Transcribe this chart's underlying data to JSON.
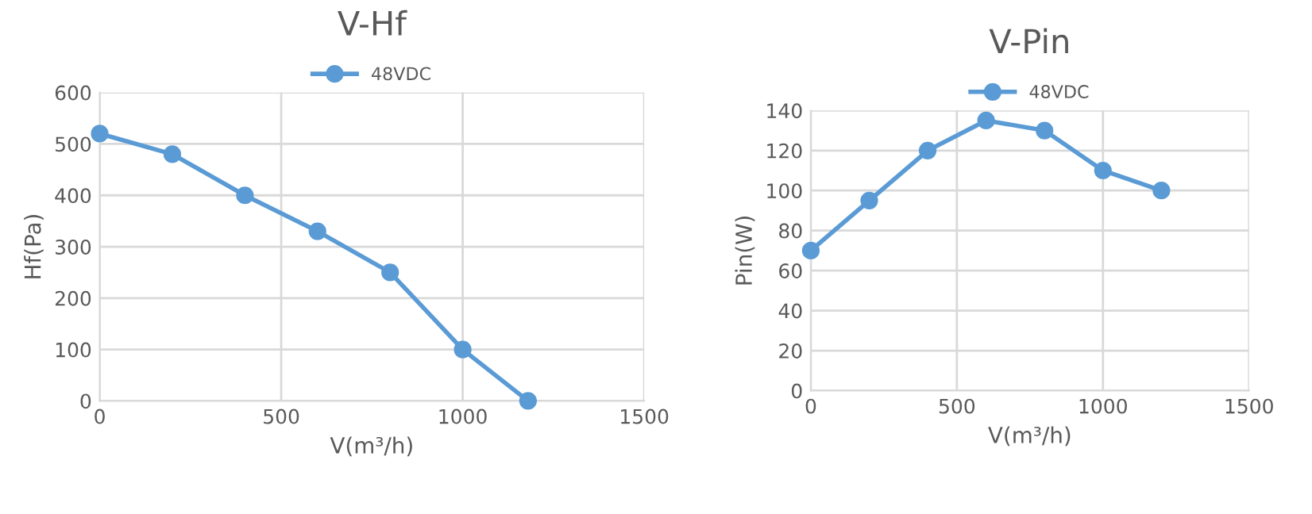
{
  "chart_data": [
    {
      "type": "line",
      "title": "V-Hf",
      "xlabel": "V(m³/h)",
      "ylabel": "Hf(Pa)",
      "x": [
        0,
        200,
        400,
        600,
        800,
        1000,
        1180
      ],
      "series": [
        {
          "name": "48VDC",
          "color": "#5b9bd5",
          "values": [
            520,
            480,
            400,
            330,
            250,
            100,
            0
          ]
        }
      ],
      "xlim": [
        0,
        1500
      ],
      "xticks": [
        0,
        500,
        1000,
        1500
      ],
      "ylim": [
        0,
        600
      ],
      "yticks": [
        0,
        100,
        200,
        300,
        400,
        500,
        600
      ],
      "grid": true,
      "legend": "top",
      "marker": "circle",
      "line_style": "solid"
    },
    {
      "type": "line",
      "title": "V-Pin",
      "xlabel": "V(m³/h)",
      "ylabel": "Pin(W)",
      "x": [
        0,
        200,
        400,
        600,
        800,
        1000,
        1200
      ],
      "series": [
        {
          "name": "48VDC",
          "color": "#5b9bd5",
          "values": [
            70,
            95,
            120,
            135,
            130,
            110,
            100
          ]
        }
      ],
      "xlim": [
        0,
        1500
      ],
      "xticks": [
        0,
        500,
        1000,
        1500
      ],
      "ylim": [
        0,
        140
      ],
      "yticks": [
        0,
        20,
        40,
        60,
        80,
        100,
        120,
        140
      ],
      "grid": true,
      "legend": "top",
      "marker": "circle",
      "line_style": "solid"
    }
  ]
}
